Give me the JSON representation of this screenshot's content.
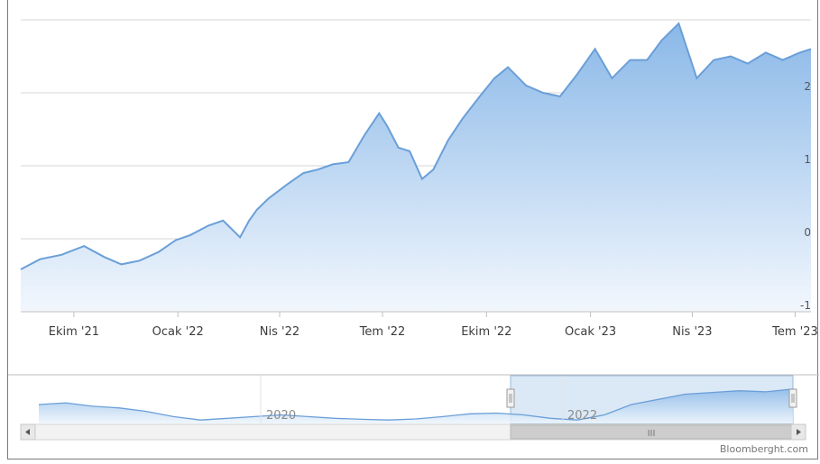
{
  "chart_data": {
    "type": "area",
    "title": "",
    "xlabel": "",
    "ylabel": "",
    "x_ticks": [
      "Ekim '21",
      "Ocak '22",
      "Nis '22",
      "Tem '22",
      "Ekim '22",
      "Ocak '23",
      "Nis '23",
      "Tem '23"
    ],
    "y_ticks": [
      "-1",
      "0",
      "1",
      "2"
    ],
    "ylim": [
      -1,
      3
    ],
    "grid": true,
    "legend": "none",
    "series": [
      {
        "dates": [
          "2021-08-15",
          "2021-09-01",
          "2021-09-20",
          "2021-10-10",
          "2021-10-28",
          "2021-11-12",
          "2021-11-28",
          "2021-12-15",
          "2021-12-30",
          "2022-01-12",
          "2022-01-28",
          "2022-02-10",
          "2022-02-25",
          "2022-03-05",
          "2022-03-12",
          "2022-03-22",
          "2022-04-08",
          "2022-04-22",
          "2022-05-05",
          "2022-05-18",
          "2022-06-01",
          "2022-06-15",
          "2022-06-28",
          "2022-07-05",
          "2022-07-15",
          "2022-07-25",
          "2022-08-05",
          "2022-08-15",
          "2022-08-28",
          "2022-09-10",
          "2022-09-25",
          "2022-10-08",
          "2022-10-20",
          "2022-11-05",
          "2022-11-20",
          "2022-12-05",
          "2022-12-20",
          "2023-01-05",
          "2023-01-20",
          "2023-02-05",
          "2023-02-20",
          "2023-03-05",
          "2023-03-20",
          "2023-04-05",
          "2023-04-20",
          "2023-05-05",
          "2023-05-20",
          "2023-06-05",
          "2023-06-20",
          "2023-07-05",
          "2023-07-15"
        ],
        "values": [
          -0.42,
          -0.28,
          -0.22,
          -0.1,
          -0.25,
          -0.35,
          -0.3,
          -0.18,
          -0.02,
          0.05,
          0.18,
          0.25,
          0.02,
          0.25,
          0.4,
          0.55,
          0.75,
          0.9,
          0.95,
          1.02,
          1.05,
          1.42,
          1.72,
          1.55,
          1.25,
          1.2,
          0.82,
          0.95,
          1.35,
          1.65,
          1.95,
          2.2,
          2.35,
          2.1,
          2.0,
          1.95,
          2.25,
          2.6,
          2.2,
          2.45,
          2.45,
          2.72,
          2.95,
          2.2,
          2.45,
          2.5,
          2.4,
          2.55,
          2.45,
          2.55,
          2.6
        ]
      }
    ],
    "navigator": {
      "labels": [
        "2020",
        "2022"
      ],
      "values": [
        0.55,
        0.6,
        0.5,
        0.45,
        0.35,
        0.2,
        0.1,
        0.15,
        0.2,
        0.25,
        0.2,
        0.15,
        0.12,
        0.1,
        0.13,
        0.2,
        0.28,
        0.3,
        0.25,
        0.15,
        0.1,
        0.25,
        0.55,
        0.7,
        0.85,
        0.9,
        0.95,
        0.92,
        1.0
      ]
    }
  },
  "credit": "Bloomberght.com",
  "scroll_thumb_label": "III",
  "colors": {
    "line": "#6a9fd8",
    "fill_top": "#8ab8e8",
    "fill_bottom": "#f2f7fd",
    "grid": "#d6d6d6",
    "nav_selection": "#dbe8f6"
  },
  "icons": {
    "scroll_left": "chevron-left-icon",
    "scroll_right": "chevron-right-icon"
  }
}
